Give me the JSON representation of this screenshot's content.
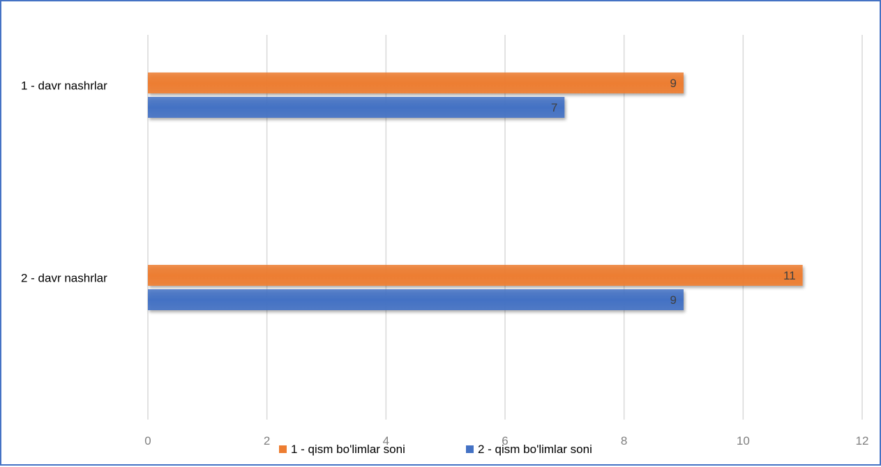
{
  "chart_data": {
    "type": "bar",
    "orientation": "horizontal",
    "categories": [
      "1 - davr nashrlar",
      "2 - davr nashrlar"
    ],
    "series": [
      {
        "name": "1 - qism bo'limlar soni",
        "values": [
          9,
          11
        ],
        "color": "#ed7d31"
      },
      {
        "name": "2 - qism bo'limlar soni",
        "values": [
          7,
          9
        ],
        "color": "#4472c4"
      }
    ],
    "xlim": [
      0,
      12
    ],
    "xticks": [
      0,
      2,
      4,
      6,
      8,
      10,
      12
    ],
    "grid": "vertical",
    "legend_position": "bottom",
    "data_labels": true,
    "title": "",
    "xlabel": "",
    "ylabel": ""
  }
}
